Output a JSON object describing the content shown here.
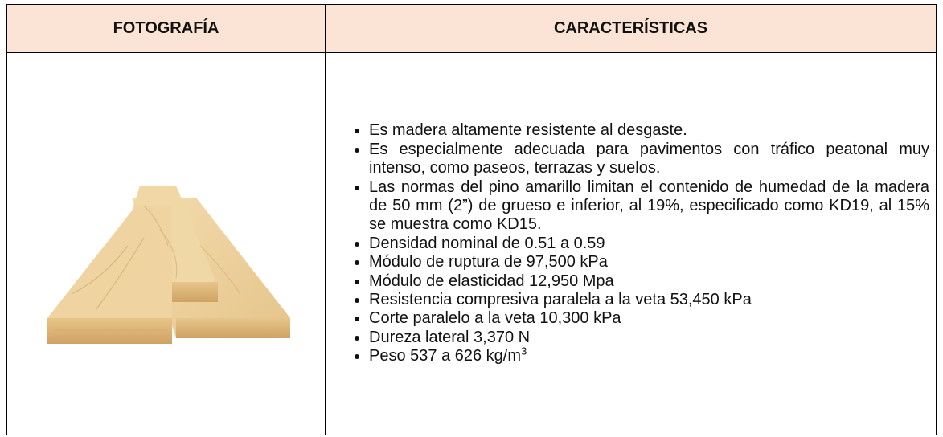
{
  "table": {
    "headers": [
      "FOTOGRAFÍA",
      "CARACTERÍSTICAS"
    ],
    "items": [
      "Es madera altamente resistente al desgaste.",
      "Es especialmente adecuada para pavimentos con tráfico peatonal muy intenso, como paseos, terrazas y suelos.",
      "Las normas del pino amarillo limitan el contenido de humedad de la madera de 50 mm (2”) de grueso e inferior, al 19%, especificado como KD19, al 15% se muestra como KD15.",
      "Densidad nominal de 0.51 a 0.59",
      "Módulo de ruptura de 97,500 kPa",
      "Módulo de elasticidad 12,950 Mpa",
      "Resistencia compresiva paralela a la veta 53,450 kPa",
      "Corte paralelo a la veta 10,300 kPa",
      "Dureza lateral 3,370 N",
      {
        "text": "Peso 537 a 626 kg/m",
        "sup": "3"
      }
    ]
  }
}
